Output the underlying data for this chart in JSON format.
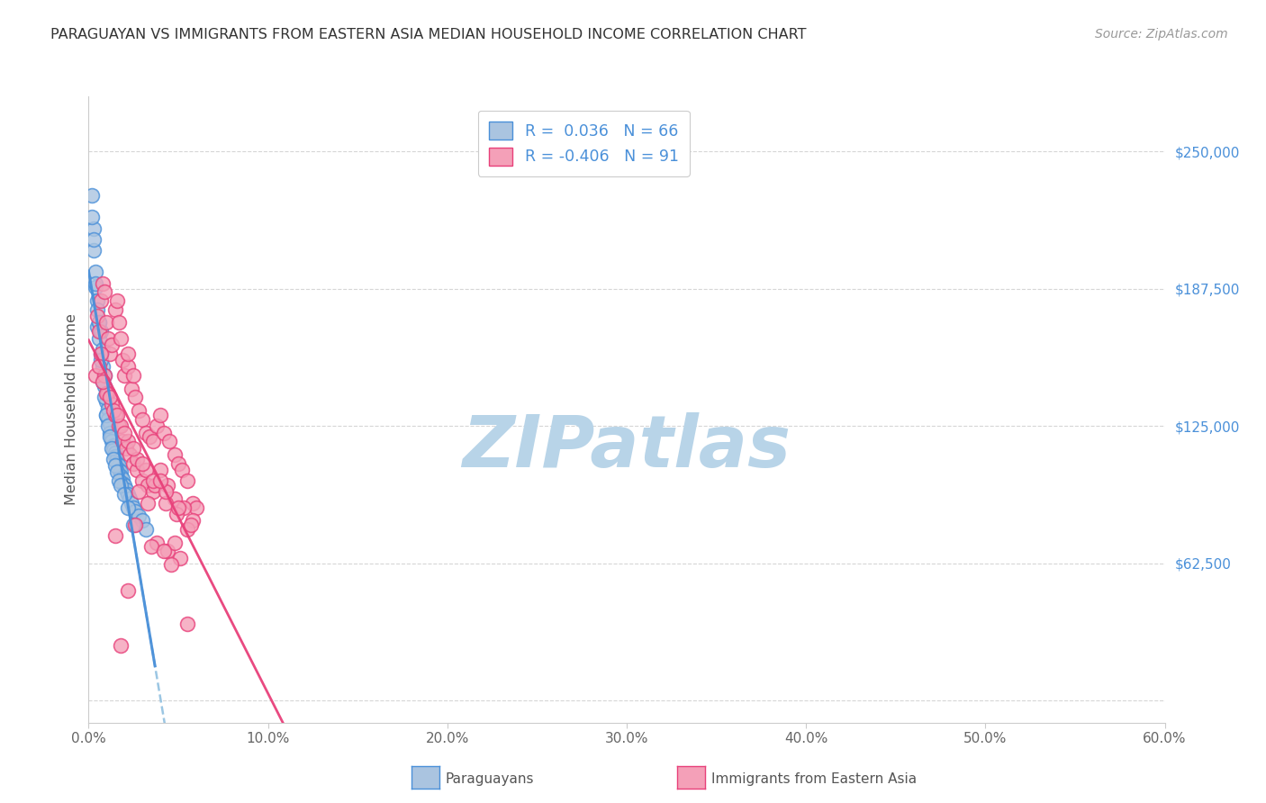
{
  "title": "PARAGUAYAN VS IMMIGRANTS FROM EASTERN ASIA MEDIAN HOUSEHOLD INCOME CORRELATION CHART",
  "source": "Source: ZipAtlas.com",
  "ylabel": "Median Household Income",
  "yticks": [
    0,
    62500,
    125000,
    187500,
    250000
  ],
  "ytick_labels": [
    "",
    "$62,500",
    "$125,000",
    "$187,500",
    "$250,000"
  ],
  "xmin": 0.0,
  "xmax": 0.6,
  "ymin": -10000,
  "ymax": 275000,
  "color_blue": "#aac4e0",
  "color_pink": "#f4a0b8",
  "color_blue_line": "#4a90d9",
  "color_pink_line": "#e8407a",
  "color_blue_dash": "#90c0e0",
  "watermark": "ZIPatlas",
  "watermark_color": "#b8d4e8",
  "label_paraguayan": "Paraguayans",
  "label_eastern_asia": "Immigrants from Eastern Asia",
  "blue_scatter_x": [
    0.002,
    0.003,
    0.003,
    0.004,
    0.004,
    0.005,
    0.005,
    0.006,
    0.006,
    0.007,
    0.007,
    0.008,
    0.008,
    0.009,
    0.009,
    0.01,
    0.01,
    0.01,
    0.011,
    0.011,
    0.012,
    0.012,
    0.013,
    0.013,
    0.014,
    0.014,
    0.015,
    0.015,
    0.016,
    0.016,
    0.017,
    0.017,
    0.018,
    0.018,
    0.019,
    0.019,
    0.02,
    0.021,
    0.022,
    0.023,
    0.024,
    0.025,
    0.026,
    0.028,
    0.03,
    0.032,
    0.002,
    0.003,
    0.004,
    0.005,
    0.006,
    0.007,
    0.008,
    0.009,
    0.01,
    0.011,
    0.012,
    0.013,
    0.014,
    0.015,
    0.016,
    0.017,
    0.018,
    0.02,
    0.022,
    0.025
  ],
  "blue_scatter_y": [
    230000,
    215000,
    205000,
    195000,
    188000,
    182000,
    170000,
    172000,
    165000,
    168000,
    158000,
    160000,
    152000,
    148000,
    143000,
    140000,
    136000,
    130000,
    133000,
    128000,
    126000,
    122000,
    120000,
    118000,
    116000,
    114000,
    113000,
    111000,
    110000,
    108000,
    107000,
    105000,
    104000,
    102000,
    101000,
    99000,
    98000,
    96000,
    94000,
    92000,
    90000,
    88000,
    86000,
    84000,
    82000,
    78000,
    220000,
    210000,
    190000,
    178000,
    172000,
    155000,
    145000,
    138000,
    130000,
    125000,
    120000,
    115000,
    110000,
    107000,
    104000,
    100000,
    98000,
    94000,
    88000,
    80000
  ],
  "pink_scatter_x": [
    0.004,
    0.005,
    0.006,
    0.007,
    0.008,
    0.009,
    0.01,
    0.011,
    0.012,
    0.013,
    0.015,
    0.016,
    0.017,
    0.018,
    0.019,
    0.02,
    0.022,
    0.022,
    0.024,
    0.025,
    0.026,
    0.028,
    0.03,
    0.032,
    0.034,
    0.036,
    0.038,
    0.04,
    0.042,
    0.045,
    0.048,
    0.05,
    0.052,
    0.055,
    0.058,
    0.06,
    0.007,
    0.009,
    0.011,
    0.013,
    0.015,
    0.017,
    0.019,
    0.021,
    0.023,
    0.025,
    0.027,
    0.03,
    0.033,
    0.036,
    0.04,
    0.044,
    0.048,
    0.053,
    0.058,
    0.006,
    0.01,
    0.014,
    0.018,
    0.022,
    0.027,
    0.032,
    0.037,
    0.043,
    0.049,
    0.055,
    0.008,
    0.012,
    0.016,
    0.02,
    0.025,
    0.03,
    0.036,
    0.043,
    0.05,
    0.057,
    0.038,
    0.044,
    0.051,
    0.035,
    0.028,
    0.048,
    0.042,
    0.033,
    0.022,
    0.015,
    0.046,
    0.055,
    0.04,
    0.026,
    0.018
  ],
  "pink_scatter_y": [
    148000,
    175000,
    168000,
    182000,
    190000,
    186000,
    172000,
    165000,
    158000,
    162000,
    178000,
    182000,
    172000,
    165000,
    155000,
    148000,
    152000,
    158000,
    142000,
    148000,
    138000,
    132000,
    128000,
    122000,
    120000,
    118000,
    125000,
    130000,
    122000,
    118000,
    112000,
    108000,
    105000,
    100000,
    90000,
    88000,
    158000,
    148000,
    140000,
    135000,
    130000,
    125000,
    118000,
    115000,
    112000,
    108000,
    105000,
    100000,
    98000,
    95000,
    105000,
    98000,
    92000,
    88000,
    82000,
    152000,
    140000,
    132000,
    125000,
    118000,
    110000,
    105000,
    98000,
    90000,
    85000,
    78000,
    145000,
    138000,
    130000,
    122000,
    115000,
    108000,
    100000,
    95000,
    88000,
    80000,
    72000,
    68000,
    65000,
    70000,
    95000,
    72000,
    68000,
    90000,
    50000,
    75000,
    62000,
    35000,
    100000,
    80000,
    25000
  ]
}
